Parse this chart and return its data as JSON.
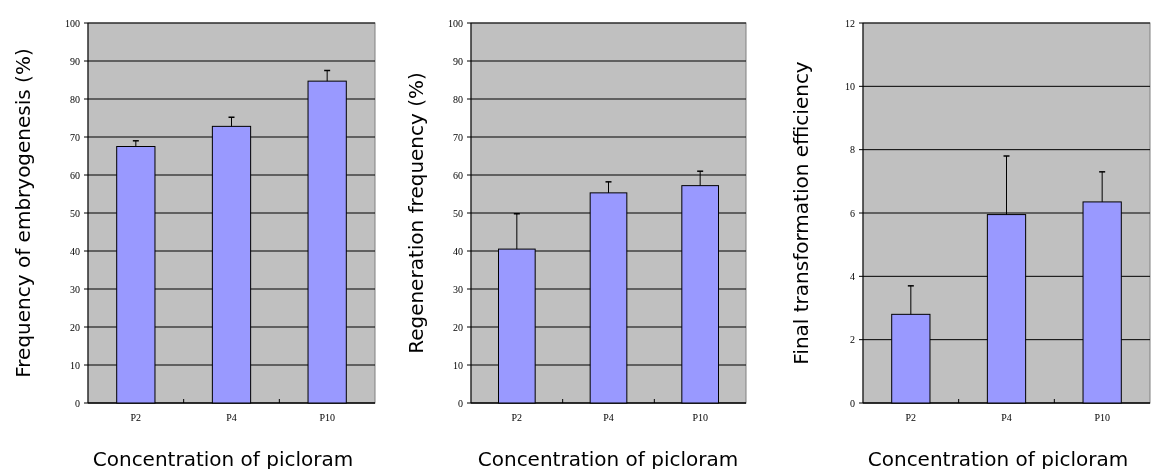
{
  "chart_data": [
    {
      "type": "bar",
      "ylabel": "Frequency of embryogenesis (%)",
      "xlabel": "Concentration of picloram",
      "categories": [
        "P2",
        "P4",
        "P10"
      ],
      "values": [
        67.5,
        72.8,
        84.7
      ],
      "errors": [
        [
          67.5,
          69
        ],
        [
          72.8,
          75.2
        ],
        [
          84.7,
          87.5
        ]
      ],
      "color": "#9999ff",
      "ylim": [
        0,
        100
      ],
      "yticks": [
        0,
        10,
        20,
        30,
        40,
        50,
        60,
        70,
        80,
        90,
        100
      ],
      "grid": "y"
    },
    {
      "type": "bar",
      "ylabel": "Regeneration frequency (%)",
      "xlabel": "Concentration of picloram",
      "categories": [
        "P2",
        "P4",
        "P10"
      ],
      "values": [
        40.5,
        55.3,
        57.2
      ],
      "errors": [
        [
          40.5,
          49.8
        ],
        [
          55.3,
          58.2
        ],
        [
          57.2,
          61
        ]
      ],
      "color": "#9999ff",
      "ylim": [
        0,
        100
      ],
      "yticks": [
        0,
        10,
        20,
        30,
        40,
        50,
        60,
        70,
        80,
        90,
        100
      ],
      "grid": "y"
    },
    {
      "type": "bar",
      "ylabel": "Final transformation efficiency",
      "xlabel": "Concentration of picloram",
      "categories": [
        "P2",
        "P4",
        "P10"
      ],
      "values": [
        2.8,
        5.95,
        6.35
      ],
      "errors": [
        [
          2.8,
          3.7
        ],
        [
          5.95,
          7.8
        ],
        [
          6.35,
          7.3
        ]
      ],
      "color": "#9999ff",
      "ylim": [
        0,
        12
      ],
      "yticks": [
        0,
        2,
        4,
        6,
        8,
        10,
        12
      ],
      "grid": "y"
    }
  ]
}
